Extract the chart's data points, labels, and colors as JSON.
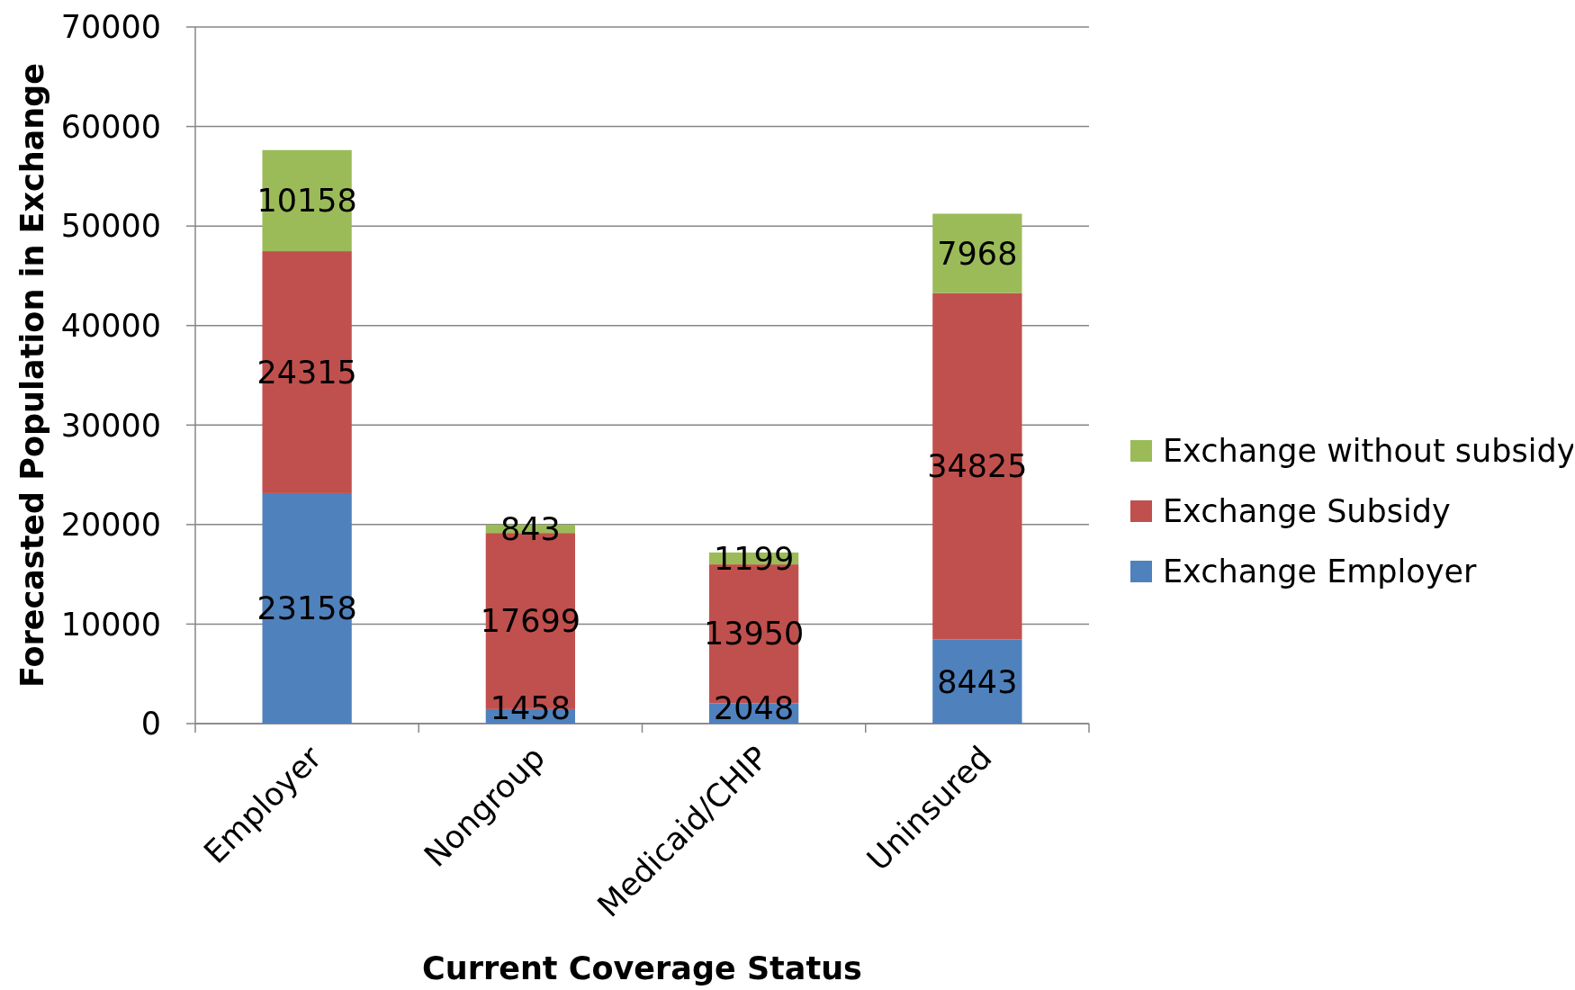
{
  "chart_data": {
    "type": "bar",
    "stacked": true,
    "xlabel": "Current Coverage Status",
    "ylabel": "Forecasted Population in Exchange",
    "categories": [
      "Employer",
      "Nongroup",
      "Medicaid/CHIP",
      "Uninsured"
    ],
    "series": [
      {
        "name": "Exchange Employer",
        "color": "#4f81bd",
        "values": [
          23158,
          1458,
          2048,
          8443
        ]
      },
      {
        "name": "Exchange Subsidy",
        "color": "#c0504d",
        "values": [
          24315,
          17699,
          13950,
          34825
        ]
      },
      {
        "name": "Exchange without subsidy",
        "color": "#9bbb59",
        "values": [
          10158,
          843,
          1199,
          7968
        ]
      }
    ],
    "ylim": [
      0,
      70000
    ],
    "yticks": [
      0,
      10000,
      20000,
      30000,
      40000,
      50000,
      60000,
      70000
    ],
    "grid": "y",
    "legend": "right",
    "data_labels": true
  }
}
